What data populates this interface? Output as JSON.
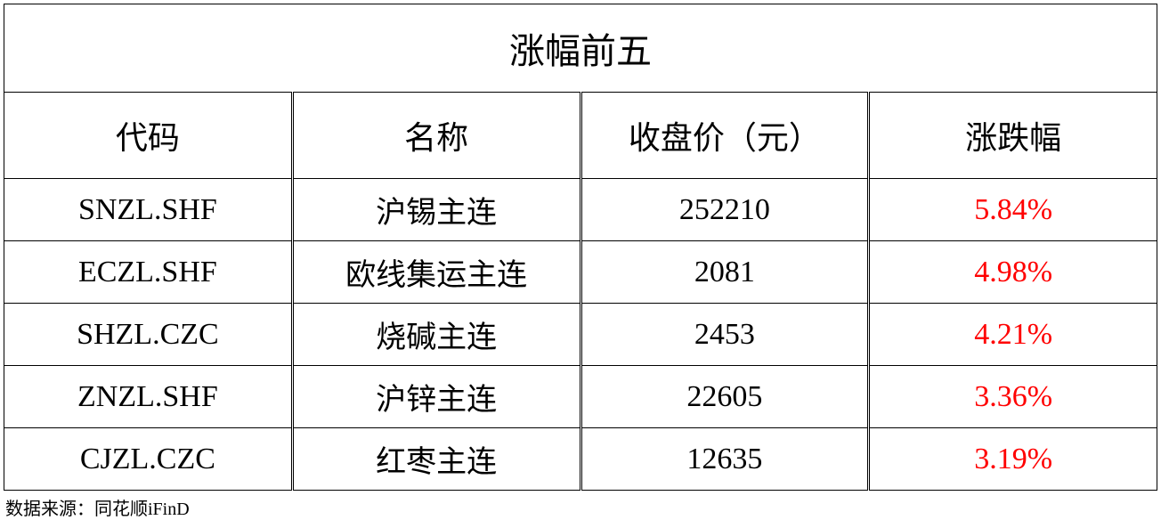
{
  "table": {
    "title": "涨幅前五",
    "headers": {
      "code": "代码",
      "name": "名称",
      "price": "收盘价（元）",
      "change": "涨跌幅"
    },
    "rows": [
      {
        "code": "SNZL.SHF",
        "name": "沪锡主连",
        "price": "252210",
        "change": "5.84%"
      },
      {
        "code": "ECZL.SHF",
        "name": "欧线集运主连",
        "price": "2081",
        "change": "4.98%"
      },
      {
        "code": "SHZL.CZC",
        "name": "烧碱主连",
        "price": "2453",
        "change": "4.21%"
      },
      {
        "code": "ZNZL.SHF",
        "name": "沪锌主连",
        "price": "22605",
        "change": "3.36%"
      },
      {
        "code": "CJZL.CZC",
        "name": "红枣主连",
        "price": "12635",
        "change": "3.19%"
      }
    ],
    "colors": {
      "text": "#000000",
      "positive": "#ff0000",
      "border": "#000000",
      "background": "#ffffff"
    },
    "font_sizes": {
      "title": 40,
      "header": 36,
      "data": 34,
      "source": 20
    }
  },
  "source": "数据来源：同花顺iFinD"
}
